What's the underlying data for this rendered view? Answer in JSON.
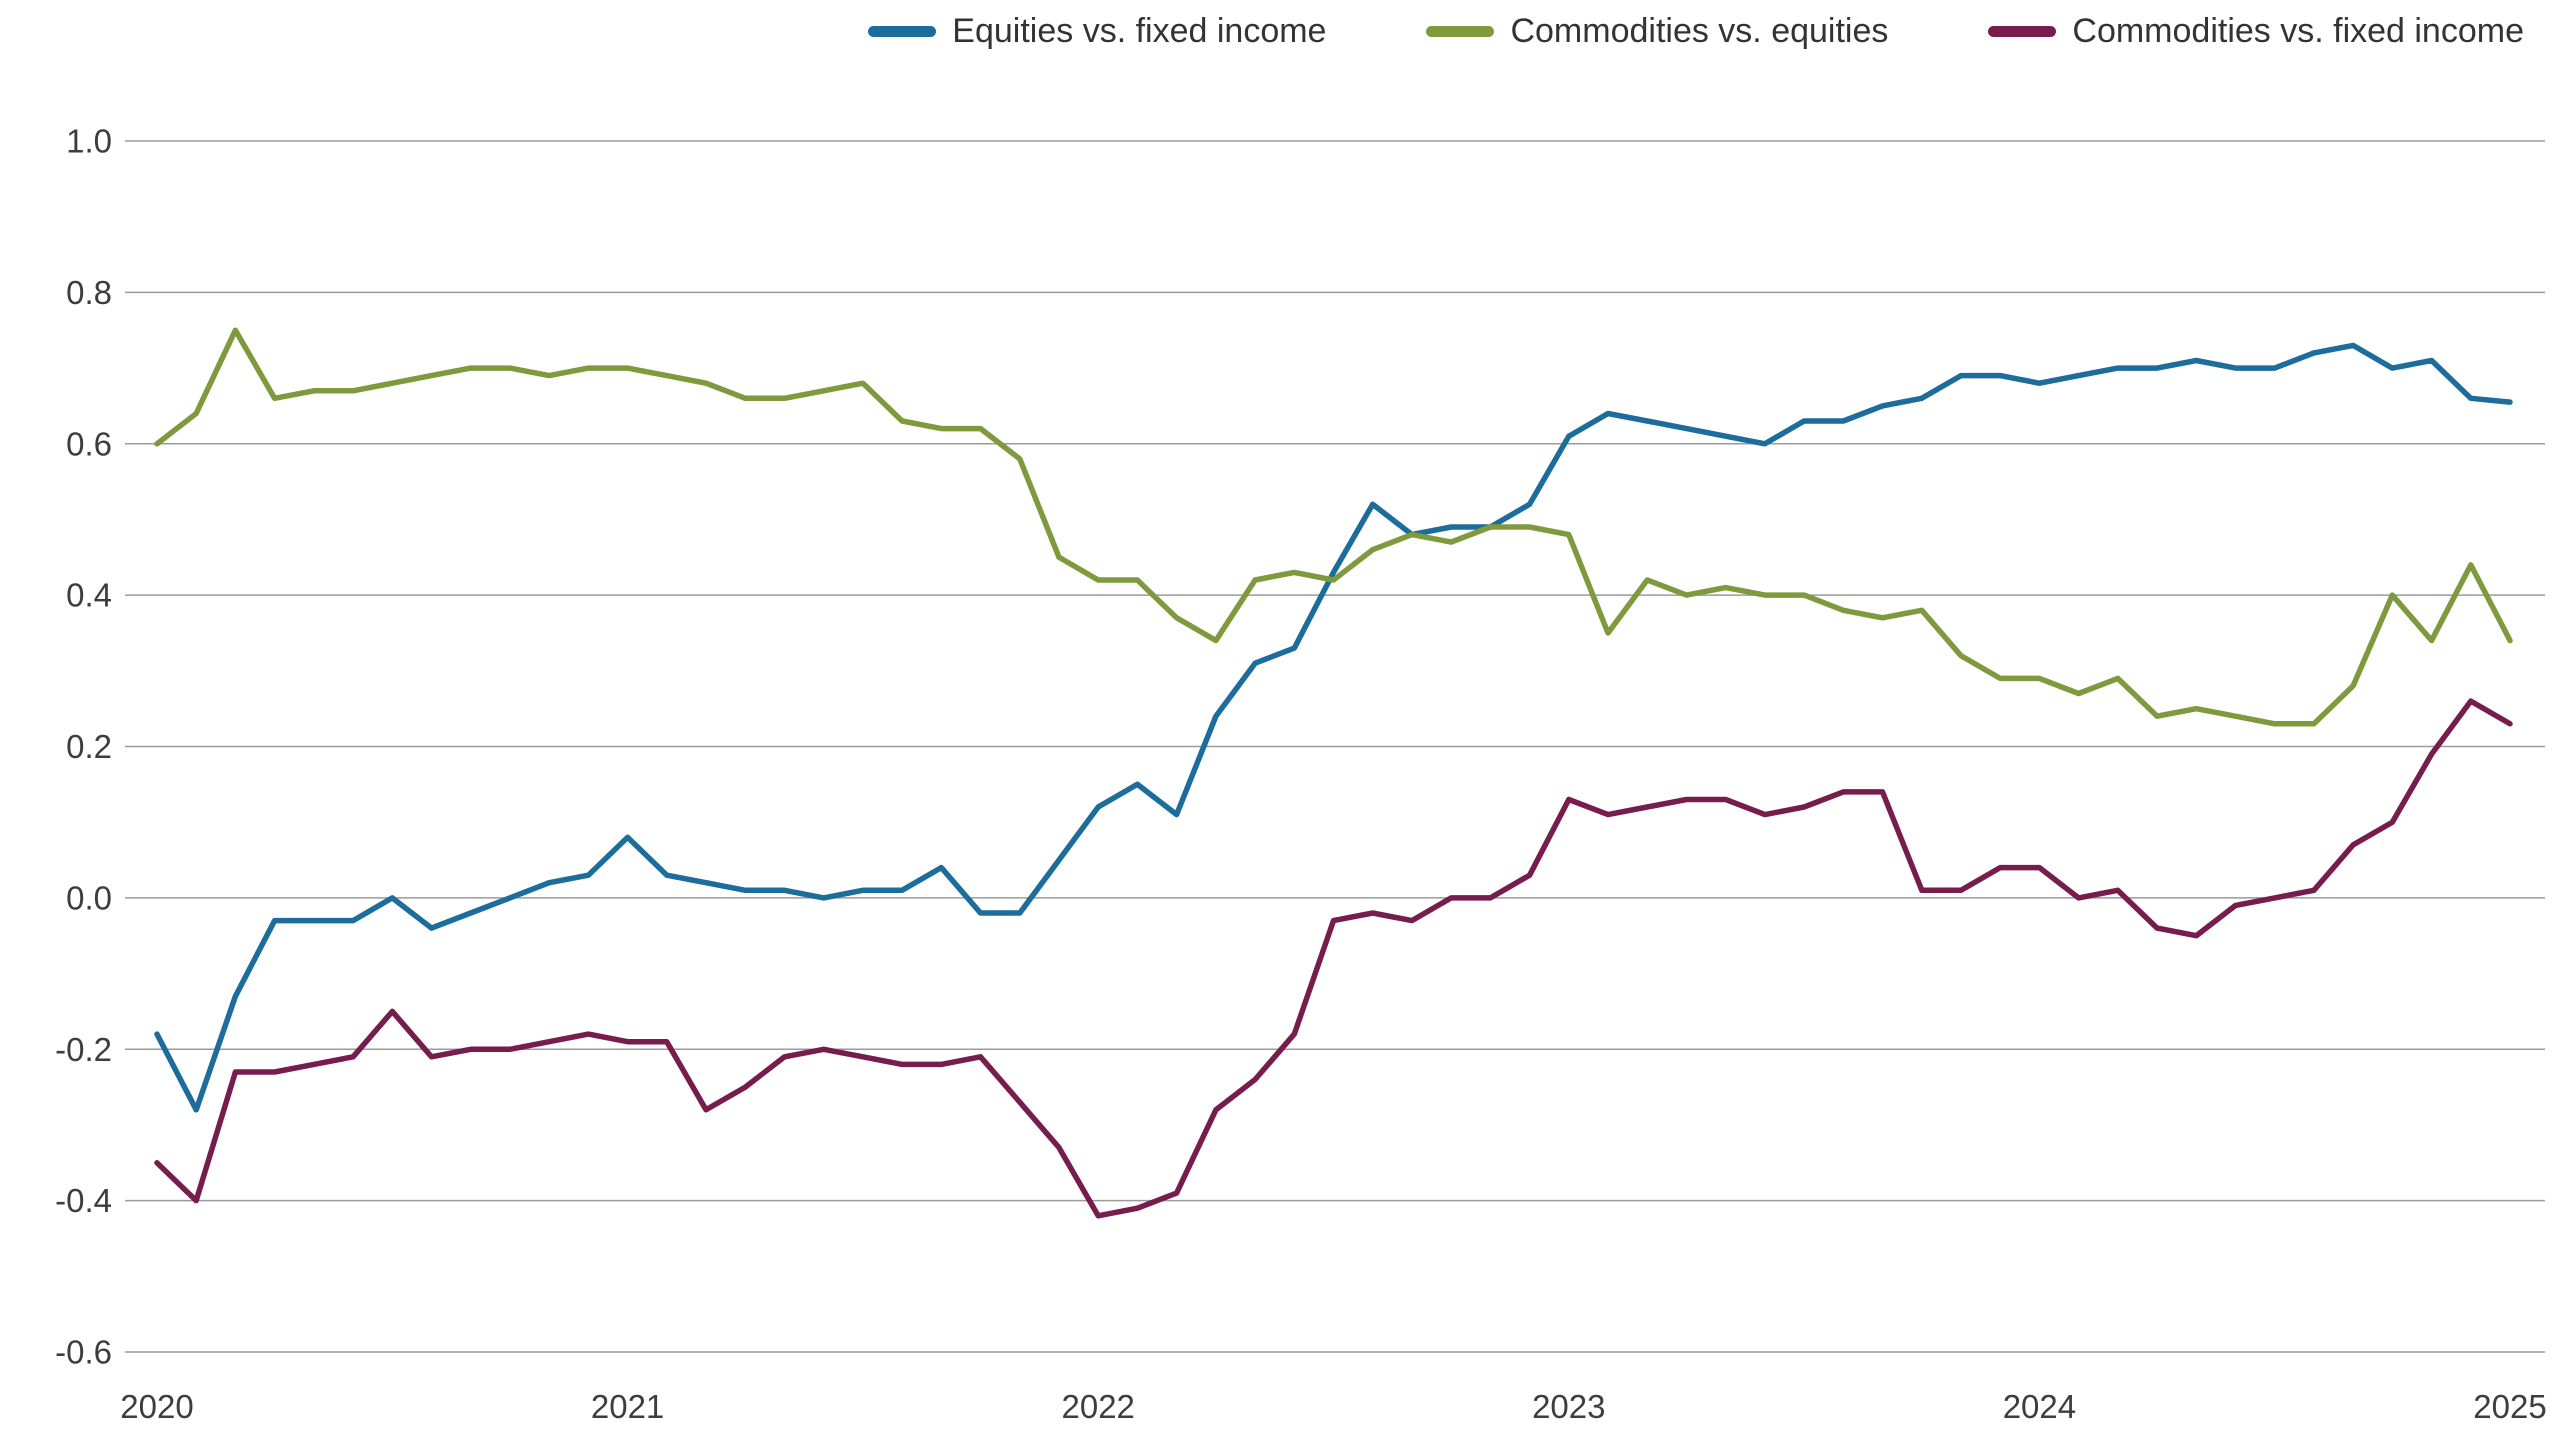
{
  "page": {
    "background": "#ffffff"
  },
  "axes": {
    "tick_color": "#3d3d3d",
    "grid_color": "#9b9b9b"
  },
  "chart_data": {
    "type": "line",
    "title": "",
    "xlabel": "",
    "ylabel": "",
    "grid": "horizontal",
    "legend_position": "top-right",
    "ylim": [
      -0.6,
      1.0
    ],
    "x_unit": "monthly observations, Jan 2020 - Jan 2025",
    "y_ticks": [
      {
        "value": 1.0,
        "label": "1.0"
      },
      {
        "value": 0.8,
        "label": "0.8"
      },
      {
        "value": 0.6,
        "label": "0.6"
      },
      {
        "value": 0.4,
        "label": "0.4"
      },
      {
        "value": 0.2,
        "label": "0.2"
      },
      {
        "value": 0.0,
        "label": "0.0"
      },
      {
        "value": -0.2,
        "label": "-0.2"
      },
      {
        "value": -0.4,
        "label": "-0.4"
      },
      {
        "value": -0.6,
        "label": "-0.6"
      }
    ],
    "x_ticks": [
      {
        "label": "2020",
        "month": 0
      },
      {
        "label": "2021",
        "month": 12
      },
      {
        "label": "2022",
        "month": 24
      },
      {
        "label": "2023",
        "month": 36
      },
      {
        "label": "2024",
        "month": 48
      },
      {
        "label": "2025",
        "month": 60
      }
    ],
    "series": [
      {
        "id": "equities-vs-fixed-income",
        "name": "Equities vs. fixed income",
        "color": "#1c6c9c",
        "values": [
          -0.18,
          -0.28,
          -0.13,
          -0.03,
          -0.03,
          -0.03,
          0.0,
          -0.04,
          -0.02,
          0.0,
          0.02,
          0.03,
          0.08,
          0.03,
          0.02,
          0.01,
          0.01,
          0.0,
          0.01,
          0.01,
          0.04,
          -0.02,
          -0.02,
          0.05,
          0.12,
          0.15,
          0.11,
          0.24,
          0.31,
          0.33,
          0.43,
          0.52,
          0.48,
          0.49,
          0.49,
          0.52,
          0.61,
          0.64,
          0.63,
          0.62,
          0.61,
          0.6,
          0.63,
          0.63,
          0.65,
          0.66,
          0.69,
          0.69,
          0.68,
          0.69,
          0.7,
          0.7,
          0.71,
          0.7,
          0.7,
          0.72,
          0.73,
          0.7,
          0.71,
          0.66,
          0.655
        ]
      },
      {
        "id": "commodities-vs-equities",
        "name": "Commodities vs. equities",
        "color": "#7e9a3d",
        "values": [
          0.6,
          0.64,
          0.75,
          0.66,
          0.67,
          0.67,
          0.68,
          0.69,
          0.7,
          0.7,
          0.69,
          0.7,
          0.7,
          0.69,
          0.68,
          0.66,
          0.66,
          0.67,
          0.68,
          0.63,
          0.62,
          0.62,
          0.58,
          0.45,
          0.42,
          0.42,
          0.37,
          0.34,
          0.42,
          0.43,
          0.42,
          0.46,
          0.48,
          0.47,
          0.49,
          0.49,
          0.48,
          0.35,
          0.42,
          0.4,
          0.41,
          0.4,
          0.4,
          0.38,
          0.37,
          0.38,
          0.32,
          0.29,
          0.29,
          0.27,
          0.29,
          0.24,
          0.25,
          0.24,
          0.23,
          0.23,
          0.28,
          0.4,
          0.34,
          0.44,
          0.34
        ]
      },
      {
        "id": "commodities-vs-fixed-income",
        "name": "Commodities vs. fixed income",
        "color": "#771d4e",
        "values": [
          -0.35,
          -0.4,
          -0.23,
          -0.23,
          -0.22,
          -0.21,
          -0.15,
          -0.21,
          -0.2,
          -0.2,
          -0.19,
          -0.18,
          -0.19,
          -0.19,
          -0.28,
          -0.25,
          -0.21,
          -0.2,
          -0.21,
          -0.22,
          -0.22,
          -0.21,
          -0.27,
          -0.33,
          -0.42,
          -0.41,
          -0.39,
          -0.28,
          -0.24,
          -0.18,
          -0.03,
          -0.02,
          -0.03,
          0.0,
          0.0,
          0.03,
          0.13,
          0.11,
          0.12,
          0.13,
          0.13,
          0.11,
          0.12,
          0.14,
          0.14,
          0.01,
          0.01,
          0.04,
          0.04,
          0.0,
          0.01,
          -0.04,
          -0.05,
          -0.01,
          0.0,
          0.01,
          0.07,
          0.1,
          0.19,
          0.26,
          0.23
        ]
      }
    ]
  }
}
